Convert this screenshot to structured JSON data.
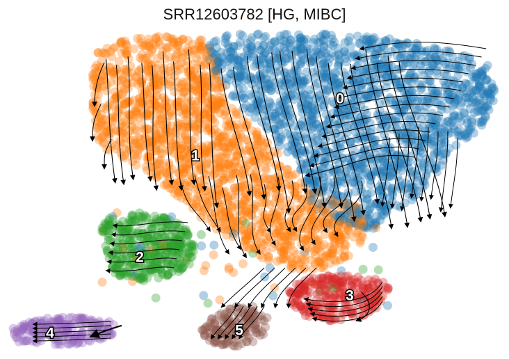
{
  "chart_data": {
    "type": "scatter",
    "subtype": "umap-embedding-with-velocity-streamlines",
    "title": "SRR12603782 [HG, MIBC]",
    "xlabel": "",
    "ylabel": "",
    "axes_visible": false,
    "grid": false,
    "legend": "on-data",
    "clusters": [
      {
        "label": "0",
        "color": "#1f77b4"
      },
      {
        "label": "1",
        "color": "#ff7f0e"
      },
      {
        "label": "2",
        "color": "#2ca02c"
      },
      {
        "label": "3",
        "color": "#d62728"
      },
      {
        "label": "4",
        "color": "#9467bd"
      },
      {
        "label": "5",
        "color": "#8c564b"
      }
    ]
  }
}
